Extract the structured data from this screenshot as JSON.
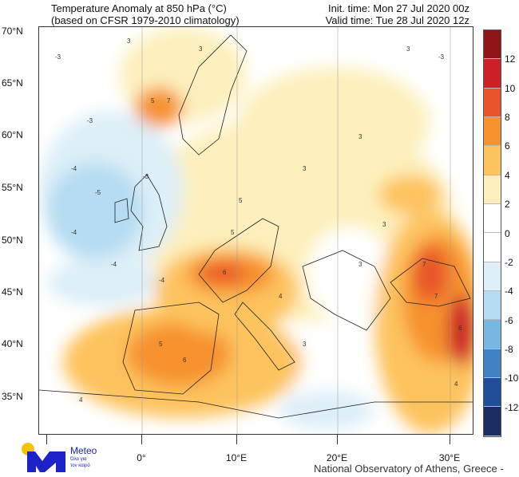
{
  "header": {
    "title": "Temperature Anomaly at 850 hPa (°C)",
    "subtitle": "(based on CFSR 1979-2010 climatology)",
    "init_time": "Init. time: Mon 27 Jul 2020 00z",
    "valid_time": "Valid time: Tue 28 Jul 2020 12z"
  },
  "axes": {
    "lat_labels": [
      "70°N",
      "65°N",
      "60°N",
      "55°N",
      "50°N",
      "45°N",
      "40°N",
      "35°N"
    ],
    "lon_labels": [
      "0°",
      "10°E",
      "20°E",
      "30°E"
    ]
  },
  "colorbar": {
    "labels": [
      "12",
      "10",
      "8",
      "6",
      "4",
      "2",
      "0",
      "-2",
      "-4",
      "-6",
      "-8",
      "-10",
      "-12"
    ],
    "colors": [
      "#8e1518",
      "#cc1f26",
      "#e8542b",
      "#f7922e",
      "#fdc35d",
      "#fdf0bd",
      "#ffffff",
      "#ffffff",
      "#ddeff8",
      "#b5dcf2",
      "#78b7e2",
      "#3f83c4",
      "#1f4f9a",
      "#1a2d63"
    ]
  },
  "contour_labels": [
    "-3",
    "-3",
    "-4",
    "-5",
    "-4",
    "-3",
    "-4",
    "-4",
    "3",
    "3",
    "5",
    "7",
    "5",
    "3",
    "3",
    "3",
    "5",
    "6",
    "4",
    "7",
    "5",
    "6",
    "3",
    "4",
    "3",
    "-3",
    "3",
    "4",
    "6",
    "7"
  ],
  "logo": {
    "name": "Meteo",
    "tagline_1": "Όλα για",
    "tagline_2": "τον καιρό",
    "primary": "#1a22c8",
    "sun": "#f5c400"
  },
  "credit": "National Observatory of Athens, Greece - meteo.gr"
}
